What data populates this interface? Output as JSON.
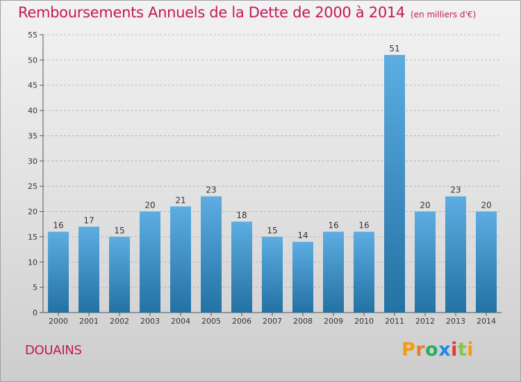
{
  "chart_data": {
    "type": "bar",
    "title": "Remboursements Annuels de la Dette de 2000 à 2014",
    "unit": "(en milliers d'€)",
    "categories": [
      "2000",
      "2001",
      "2002",
      "2003",
      "2004",
      "2005",
      "2006",
      "2007",
      "2008",
      "2009",
      "2010",
      "2011",
      "2012",
      "2013",
      "2014"
    ],
    "values": [
      16,
      17,
      15,
      20,
      21,
      23,
      18,
      15,
      14,
      16,
      16,
      51,
      20,
      23,
      20
    ],
    "ylim": [
      0,
      55
    ],
    "yticks": [
      0,
      5,
      10,
      15,
      20,
      25,
      30,
      35,
      40,
      45,
      50,
      55
    ],
    "grid": true,
    "xlabel": "",
    "ylabel": ""
  },
  "commune": "DOUAINS",
  "logo": {
    "letters": [
      "P",
      "r",
      "o",
      "x",
      "i",
      "t",
      "i"
    ],
    "colors": [
      "#f39c12",
      "#e67e22",
      "#27ae60",
      "#1e88e5",
      "#e53935",
      "#8bc34a",
      "#f39c12"
    ]
  },
  "colors": {
    "title": "#c2185b",
    "bar_top": "#5dade2",
    "bar_bottom": "#2471a3",
    "grid": "#aaaaaa"
  }
}
